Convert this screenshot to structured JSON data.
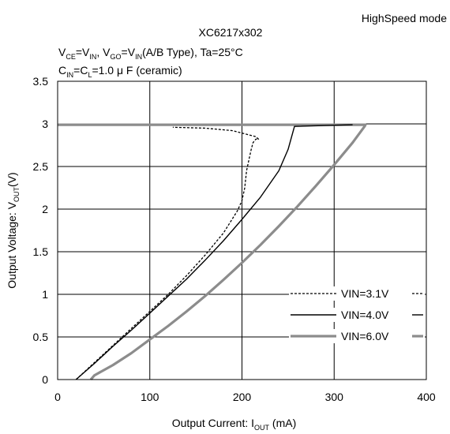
{
  "header": {
    "mode_label": "HighSpeed mode",
    "model": "XC6217x302",
    "conditions": {
      "v": "V",
      "ce": "CE",
      "eq": "=",
      "in": "IN",
      "go": "GO",
      "type_text": "(A/B Type)",
      "ta_text": ", Ta=25°C"
    },
    "capacitance": {
      "c": "C",
      "in": "IN",
      "eq": "=",
      "l": "L",
      "val": "=1.0 μ F (ceramic)"
    }
  },
  "chart_data": {
    "type": "line",
    "title": "XC6217x302",
    "xlabel": "Output Current: I_OUT (mA)",
    "xlabel_parts": {
      "main": "Output Current: I",
      "sub": "OUT",
      "unit": " (mA)"
    },
    "ylabel": "Output Voltage: V_OUT(V)",
    "ylabel_parts": {
      "main": "Output Voltage: V",
      "sub": "OUT",
      "unit": "(V)"
    },
    "xlim": [
      0,
      400
    ],
    "ylim": [
      0,
      3.5
    ],
    "x_ticks": [
      "0",
      "100",
      "200",
      "300",
      "400"
    ],
    "y_ticks": [
      "0",
      "0.5",
      "1",
      "1.5",
      "2",
      "2.5",
      "3",
      "3.5"
    ],
    "grid": true,
    "legend_position": "bottom-right",
    "series": [
      {
        "name": "VIN=3.1V",
        "style": "dashed",
        "color": "#000000",
        "points": [
          [
            20,
            0
          ],
          [
            40,
            0.2
          ],
          [
            60,
            0.4
          ],
          [
            80,
            0.6
          ],
          [
            100,
            0.8
          ],
          [
            120,
            1.0
          ],
          [
            140,
            1.22
          ],
          [
            160,
            1.46
          ],
          [
            180,
            1.72
          ],
          [
            195,
            1.98
          ],
          [
            200,
            2.1
          ],
          [
            203,
            2.25
          ],
          [
            205,
            2.45
          ],
          [
            208,
            2.6
          ],
          [
            210,
            2.7
          ],
          [
            212,
            2.78
          ],
          [
            215,
            2.82
          ],
          [
            218,
            2.82
          ],
          [
            215,
            2.85
          ],
          [
            190,
            2.92
          ],
          [
            160,
            2.95
          ],
          [
            125,
            2.96
          ]
        ]
      },
      {
        "name": "VIN=4.0V",
        "style": "solid",
        "color": "#000000",
        "points": [
          [
            20,
            0
          ],
          [
            40,
            0.19
          ],
          [
            60,
            0.39
          ],
          [
            80,
            0.58
          ],
          [
            100,
            0.78
          ],
          [
            120,
            0.98
          ],
          [
            140,
            1.18
          ],
          [
            160,
            1.4
          ],
          [
            180,
            1.63
          ],
          [
            200,
            1.88
          ],
          [
            220,
            2.14
          ],
          [
            240,
            2.45
          ],
          [
            250,
            2.7
          ],
          [
            257,
            2.97
          ],
          [
            320,
            2.99
          ]
        ]
      },
      {
        "name": "VIN=6.0V",
        "style": "thick",
        "color": "#8c8c8c",
        "points": [
          [
            0,
            2.99
          ],
          [
            200,
            2.99
          ],
          [
            334,
            2.99
          ],
          [
            333,
            2.97
          ],
          [
            320,
            2.78
          ],
          [
            300,
            2.52
          ],
          [
            280,
            2.27
          ],
          [
            260,
            2.03
          ],
          [
            240,
            1.8
          ],
          [
            220,
            1.58
          ],
          [
            200,
            1.37
          ],
          [
            180,
            1.17
          ],
          [
            160,
            0.98
          ],
          [
            140,
            0.8
          ],
          [
            120,
            0.63
          ],
          [
            100,
            0.47
          ],
          [
            80,
            0.31
          ],
          [
            60,
            0.17
          ],
          [
            40,
            0.05
          ],
          [
            36,
            0
          ]
        ]
      }
    ]
  }
}
